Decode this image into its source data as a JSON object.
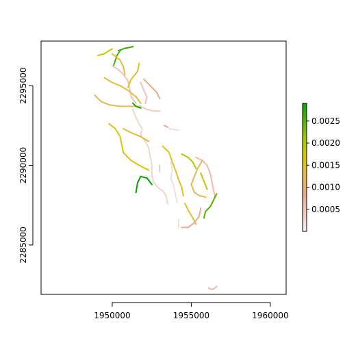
{
  "chart_data": {
    "type": "raster-map",
    "title": "",
    "xlabel": "",
    "ylabel": "",
    "xlim": [
      1945500,
      1961000
    ],
    "ylim": [
      2281900,
      2297800
    ],
    "x_ticks": [
      {
        "value": 1950000,
        "label": "1950000"
      },
      {
        "value": 1955000,
        "label": "1955000"
      },
      {
        "value": 1960000,
        "label": "1960000"
      }
    ],
    "y_ticks": [
      {
        "value": 2285000,
        "label": "2285000"
      },
      {
        "value": 2290000,
        "label": "2290000"
      },
      {
        "value": 2295000,
        "label": "2295000"
      }
    ],
    "grid": false,
    "legend": {
      "type": "colorbar",
      "placement": "right",
      "range": [
        0,
        0.0029
      ],
      "ticks": [
        {
          "value": 0.0005,
          "label": "0.0005"
        },
        {
          "value": 0.001,
          "label": "0.0010"
        },
        {
          "value": 0.0015,
          "label": "0.0015"
        },
        {
          "value": 0.002,
          "label": "0.0020"
        },
        {
          "value": 0.0025,
          "label": "0.0025"
        }
      ],
      "colors": [
        "#f2f2f2",
        "#f0c9c0",
        "#e8a98e",
        "#e6b84e",
        "#d8c600",
        "#a8c800",
        "#5cb200",
        "#00a600"
      ]
    },
    "segments": [
      {
        "v": 0.0018,
        "pts": [
          [
            1949100,
            2296900
          ],
          [
            1949500,
            2297000
          ],
          [
            1949800,
            2297200
          ],
          [
            1950000,
            2297300
          ]
        ]
      },
      {
        "v": 0.0027,
        "pts": [
          [
            1950400,
            2297200
          ],
          [
            1950800,
            2297350
          ],
          [
            1951100,
            2297400
          ],
          [
            1951300,
            2297450
          ]
        ]
      },
      {
        "v": 0.0026,
        "pts": [
          [
            1950500,
            2297200
          ],
          [
            1950300,
            2296900
          ],
          [
            1950200,
            2296600
          ],
          [
            1950100,
            2296300
          ]
        ]
      },
      {
        "v": 0.0014,
        "pts": [
          [
            1950000,
            2297000
          ],
          [
            1950500,
            2296600
          ],
          [
            1950700,
            2296200
          ],
          [
            1950800,
            2295700
          ]
        ]
      },
      {
        "v": 0.0005,
        "pts": [
          [
            1950000,
            2296250
          ],
          [
            1950400,
            2296000
          ],
          [
            1950700,
            2295700
          ],
          [
            1951000,
            2295300
          ],
          [
            1951100,
            2294800
          ],
          [
            1951200,
            2294300
          ],
          [
            1951500,
            2293900
          ]
        ]
      },
      {
        "v": 0.0013,
        "pts": [
          [
            1949500,
            2295500
          ],
          [
            1950000,
            2295200
          ],
          [
            1950500,
            2295000
          ],
          [
            1951000,
            2294700
          ],
          [
            1951500,
            2294300
          ],
          [
            1951800,
            2293900
          ]
        ]
      },
      {
        "v": 0.0015,
        "pts": [
          [
            1951000,
            2294900
          ],
          [
            1951200,
            2295400
          ],
          [
            1951600,
            2295900
          ],
          [
            1951700,
            2296400
          ]
        ]
      },
      {
        "v": 0.0009,
        "pts": [
          [
            1952000,
            2295400
          ],
          [
            1952400,
            2295000
          ],
          [
            1952800,
            2294600
          ],
          [
            1953000,
            2294200
          ]
        ]
      },
      {
        "v": 0.0005,
        "pts": [
          [
            1951800,
            2295200
          ],
          [
            1952000,
            2294700
          ],
          [
            1952200,
            2294300
          ],
          [
            1952100,
            2293900
          ]
        ]
      },
      {
        "v": 0.0012,
        "pts": [
          [
            1948900,
            2294400
          ],
          [
            1949300,
            2294000
          ],
          [
            1949800,
            2293800
          ],
          [
            1950500,
            2293700
          ],
          [
            1951100,
            2293700
          ],
          [
            1951800,
            2293700
          ]
        ]
      },
      {
        "v": 0.0004,
        "pts": [
          [
            1951800,
            2293700
          ],
          [
            1952200,
            2293500
          ],
          [
            1952700,
            2293400
          ],
          [
            1953000,
            2293400
          ]
        ]
      },
      {
        "v": 0.0028,
        "pts": [
          [
            1951300,
            2293900
          ],
          [
            1951500,
            2293700
          ],
          [
            1951800,
            2293600
          ]
        ]
      },
      {
        "v": 0.0003,
        "pts": [
          [
            1951300,
            2293500
          ],
          [
            1951500,
            2293000
          ],
          [
            1951700,
            2292600
          ],
          [
            1951900,
            2292300
          ],
          [
            1951800,
            2291900
          ],
          [
            1952100,
            2291500
          ],
          [
            1952300,
            2291100
          ],
          [
            1952400,
            2290600
          ],
          [
            1952500,
            2290100
          ],
          [
            1952500,
            2289500
          ],
          [
            1952600,
            2289000
          ],
          [
            1952900,
            2288600
          ],
          [
            1953200,
            2288400
          ],
          [
            1953400,
            2288100
          ],
          [
            1953500,
            2287600
          ]
        ]
      },
      {
        "v": 0.0016,
        "pts": [
          [
            1949800,
            2292600
          ],
          [
            1950200,
            2292300
          ],
          [
            1950500,
            2291800
          ],
          [
            1950600,
            2291300
          ],
          [
            1950700,
            2290800
          ],
          [
            1951200,
            2290300
          ],
          [
            1951700,
            2290000
          ],
          [
            1952100,
            2289800
          ],
          [
            1952300,
            2289700
          ]
        ]
      },
      {
        "v": 0.0014,
        "pts": [
          [
            1950700,
            2292300
          ],
          [
            1951300,
            2292000
          ],
          [
            1951800,
            2291800
          ],
          [
            1952300,
            2291500
          ]
        ]
      },
      {
        "v": 0.0008,
        "pts": [
          [
            1953300,
            2292500
          ],
          [
            1953500,
            2292400
          ]
        ]
      },
      {
        "v": 0.0002,
        "pts": [
          [
            1953600,
            2292300
          ],
          [
            1954200,
            2292200
          ]
        ]
      },
      {
        "v": 0.0015,
        "pts": [
          [
            1953200,
            2291200
          ],
          [
            1953600,
            2290800
          ],
          [
            1953800,
            2290200
          ],
          [
            1954000,
            2289700
          ],
          [
            1954200,
            2289100
          ],
          [
            1954400,
            2288600
          ],
          [
            1954500,
            2288100
          ]
        ]
      },
      {
        "v": 0.0002,
        "pts": [
          [
            1953700,
            2290200
          ],
          [
            1953800,
            2289700
          ],
          [
            1953700,
            2289200
          ],
          [
            1953900,
            2288700
          ],
          [
            1954000,
            2288200
          ],
          [
            1954100,
            2287700
          ]
        ]
      },
      {
        "v": 0.002,
        "pts": [
          [
            1954400,
            2290700
          ],
          [
            1954800,
            2290500
          ],
          [
            1955100,
            2290200
          ],
          [
            1955300,
            2289800
          ]
        ]
      },
      {
        "v": 0.0006,
        "pts": [
          [
            1955300,
            2290500
          ],
          [
            1955700,
            2290300
          ],
          [
            1956000,
            2290000
          ],
          [
            1956200,
            2289500
          ],
          [
            1956300,
            2289000
          ],
          [
            1956400,
            2288500
          ],
          [
            1956500,
            2288000
          ]
        ]
      },
      {
        "v": 0.0012,
        "pts": [
          [
            1955700,
            2290300
          ],
          [
            1955400,
            2289800
          ],
          [
            1955200,
            2289300
          ],
          [
            1955000,
            2288800
          ],
          [
            1955200,
            2288300
          ],
          [
            1955500,
            2288100
          ],
          [
            1955900,
            2288000
          ]
        ]
      },
      {
        "v": 0.0019,
        "pts": [
          [
            1955600,
            2289500
          ],
          [
            1955800,
            2289000
          ],
          [
            1956000,
            2288500
          ]
        ]
      },
      {
        "v": 0.0004,
        "pts": [
          [
            1953000,
            2290000
          ],
          [
            1953000,
            2289600
          ]
        ]
      },
      {
        "v": 0.0014,
        "pts": [
          [
            1954600,
            2287600
          ],
          [
            1954800,
            2287200
          ],
          [
            1955100,
            2286700
          ],
          [
            1955300,
            2286300
          ]
        ]
      },
      {
        "v": 0.0025,
        "pts": [
          [
            1956600,
            2288200
          ],
          [
            1956400,
            2287800
          ],
          [
            1956200,
            2287400
          ],
          [
            1955900,
            2287100
          ],
          [
            1955800,
            2286700
          ]
        ]
      },
      {
        "v": 0.0008,
        "pts": [
          [
            1955600,
            2287300
          ],
          [
            1955500,
            2286800
          ],
          [
            1955200,
            2286400
          ],
          [
            1954800,
            2286100
          ],
          [
            1954400,
            2286100
          ]
        ]
      },
      {
        "v": 0.0029,
        "pts": [
          [
            1951500,
            2288300
          ],
          [
            1951600,
            2288900
          ],
          [
            1951800,
            2289300
          ],
          [
            1952200,
            2289200
          ],
          [
            1952500,
            2288800
          ]
        ]
      },
      {
        "v": 0.0002,
        "pts": [
          [
            1954200,
            2286600
          ],
          [
            1954200,
            2286100
          ]
        ]
      },
      {
        "v": 0.0006,
        "pts": [
          [
            1956100,
            2282300
          ],
          [
            1956300,
            2282200
          ],
          [
            1956500,
            2282300
          ],
          [
            1956600,
            2282400
          ]
        ]
      }
    ]
  }
}
